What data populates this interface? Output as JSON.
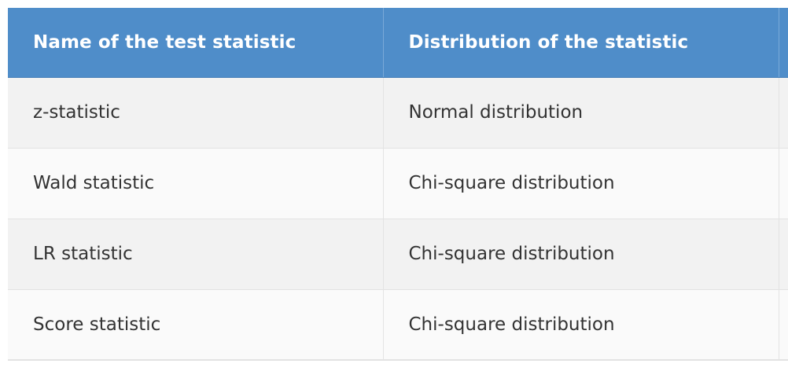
{
  "table": {
    "headers": [
      "Name of the test statistic",
      "Distribution of the statistic"
    ],
    "rows": [
      [
        "z-statistic",
        "Normal distribution"
      ],
      [
        "Wald statistic",
        "Chi-square distribution"
      ],
      [
        "LR statistic",
        "Chi-square distribution"
      ],
      [
        "Score statistic",
        "Chi-square distribution"
      ]
    ]
  },
  "colors": {
    "header_background": "#4f8dc9",
    "header_text": "#ffffff",
    "row_odd": "#f2f2f2",
    "row_even": "#fafafa",
    "body_text": "#333333"
  }
}
